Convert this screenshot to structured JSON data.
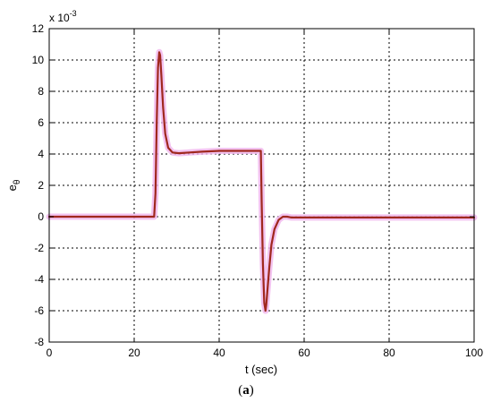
{
  "chart_data": {
    "type": "line",
    "title": "",
    "xlabel": "t (sec)",
    "ylabel": "e",
    "ylabel_subscript": "θ",
    "y_multiplier": "x 10",
    "y_multiplier_exponent": "-3",
    "xlim": [
      0,
      100
    ],
    "ylim": [
      -8,
      12
    ],
    "xticks": [
      0,
      20,
      40,
      60,
      80,
      100
    ],
    "yticks": [
      -8,
      -6,
      -4,
      -2,
      0,
      2,
      4,
      6,
      8,
      10,
      12
    ],
    "grid": true,
    "colors": {
      "line": "#a0281e",
      "halo": "#f0b4ec"
    },
    "series": [
      {
        "x": [
          0,
          24.7,
          25.0,
          25.3,
          25.6,
          25.9,
          26.1,
          26.4,
          26.8,
          27.3,
          28.0,
          29.0,
          30.5,
          33.0,
          36.0,
          40.0,
          45.0,
          48.0,
          49.8,
          50.0,
          50.3,
          50.6,
          50.9,
          51.1,
          51.4,
          51.8,
          52.3,
          53.0,
          54.0,
          55.0,
          56.0,
          57.0,
          60.0,
          70.0,
          80.0,
          90.0,
          100.0
        ],
        "y": [
          0,
          0,
          1.5,
          6.0,
          9.5,
          10.5,
          10.3,
          9.0,
          7.0,
          5.3,
          4.4,
          4.1,
          4.05,
          4.1,
          4.15,
          4.2,
          4.2,
          4.2,
          4.2,
          1.0,
          -3.0,
          -5.5,
          -6.0,
          -5.6,
          -4.6,
          -3.2,
          -1.8,
          -0.8,
          -0.2,
          0.0,
          0.0,
          -0.05,
          -0.05,
          -0.05,
          -0.05,
          -0.05,
          -0.05
        ]
      }
    ]
  },
  "caption": {
    "label": "a",
    "open": "(",
    "close": ")"
  }
}
